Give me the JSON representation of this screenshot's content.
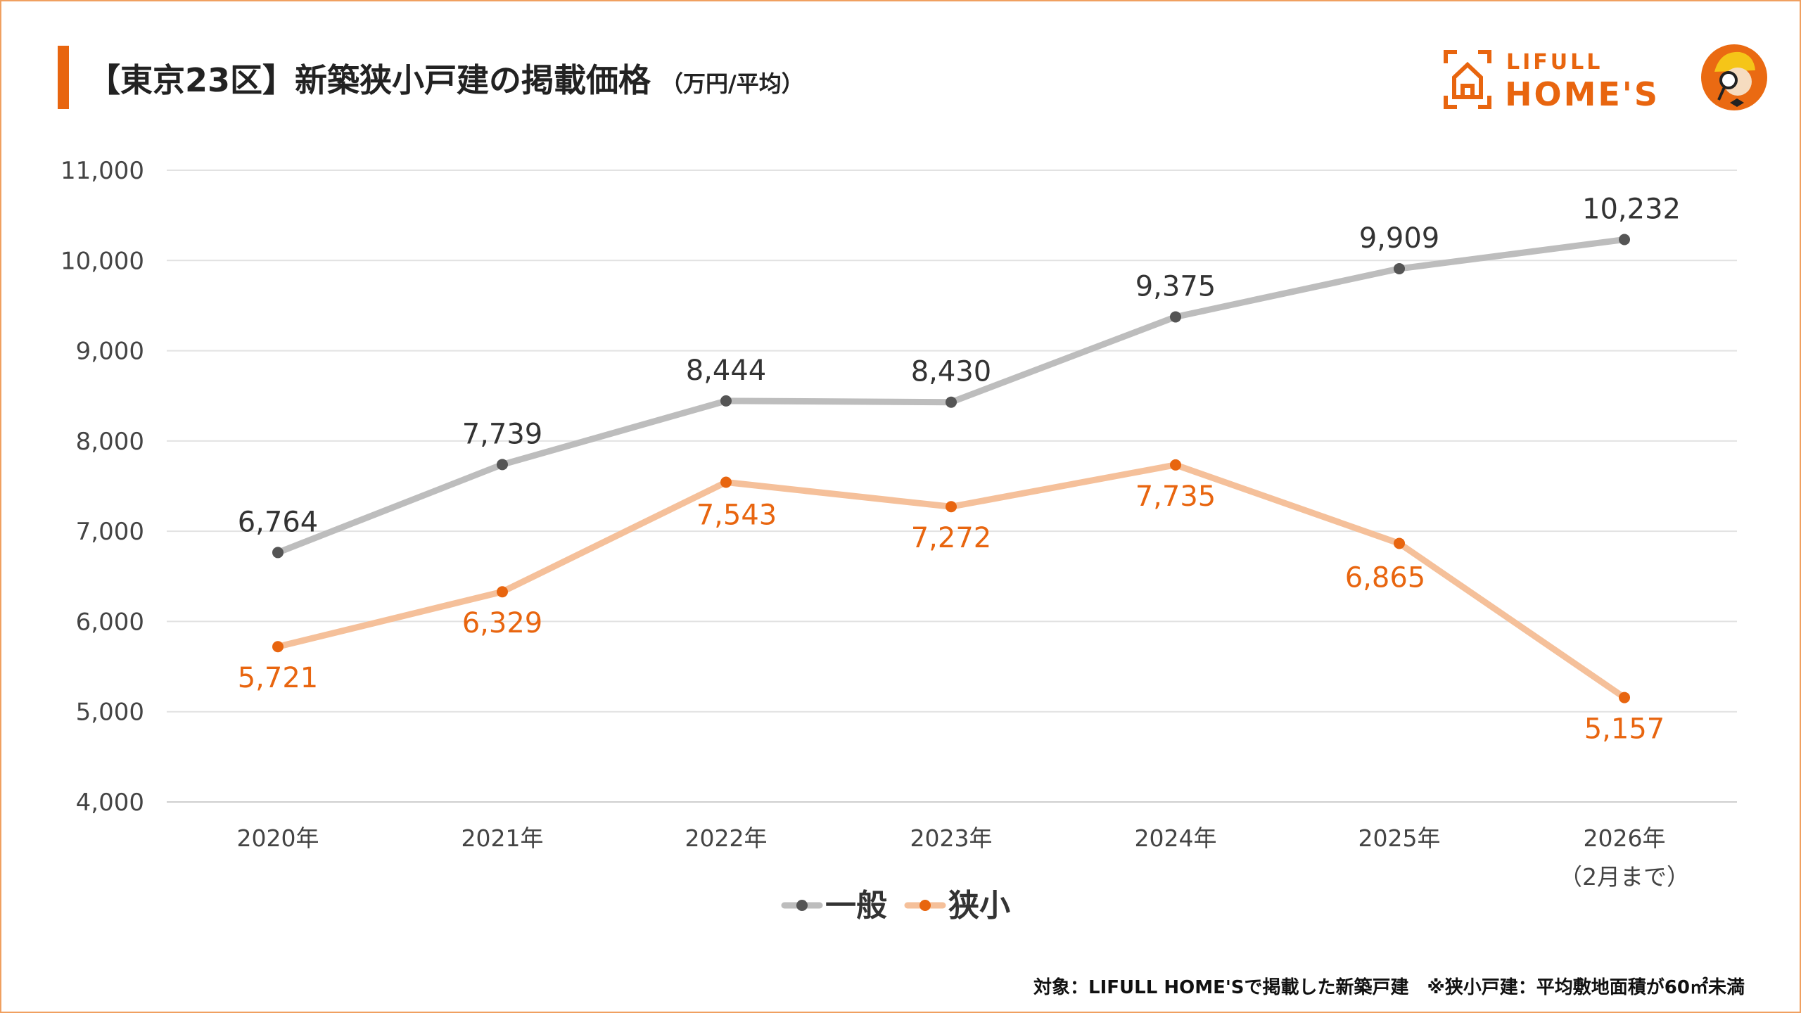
{
  "header": {
    "title": "【東京23区】新築狭小戸建の掲載価格",
    "unit": "（万円/平均）"
  },
  "logo": {
    "line1": "LIFULL",
    "line2": "HOME'S"
  },
  "footnote": "対象：LIFULL HOME'Sで掲載した新築戸建　※狭小戸建：平均敷地面積が60㎡未満",
  "chart_data": {
    "type": "line",
    "title": "【東京23区】新築狭小戸建の掲載価格（万円/平均）",
    "categories": [
      "2020年",
      "2021年",
      "2022年",
      "2023年",
      "2024年",
      "2025年",
      "2026年"
    ],
    "category_notes": [
      "",
      "",
      "",
      "",
      "",
      "",
      "（2月まで）"
    ],
    "ylim": [
      4000,
      11000
    ],
    "yticks": [
      4000,
      5000,
      6000,
      7000,
      8000,
      9000,
      10000,
      11000
    ],
    "ytick_labels": [
      "4,000",
      "5,000",
      "6,000",
      "7,000",
      "8,000",
      "9,000",
      "10,000",
      "11,000"
    ],
    "grid": true,
    "legend_position": "bottom-center",
    "series": [
      {
        "name": "一般",
        "line_color": "#bdbdbd",
        "marker_color": "#555555",
        "label_color": "#333333",
        "values": [
          6764,
          7739,
          8444,
          8430,
          9375,
          9909,
          10232
        ],
        "labels": [
          "6,764",
          "7,739",
          "8,444",
          "8,430",
          "9,375",
          "9,909",
          "10,232"
        ]
      },
      {
        "name": "狭小",
        "line_color": "#f5c09a",
        "marker_color": "#e8650f",
        "label_color": "#e8650f",
        "values": [
          5721,
          6329,
          7543,
          7272,
          7735,
          6865,
          5157
        ],
        "labels": [
          "5,721",
          "6,329",
          "7,543",
          "7,272",
          "7,735",
          "6,865",
          "5,157"
        ]
      }
    ]
  }
}
